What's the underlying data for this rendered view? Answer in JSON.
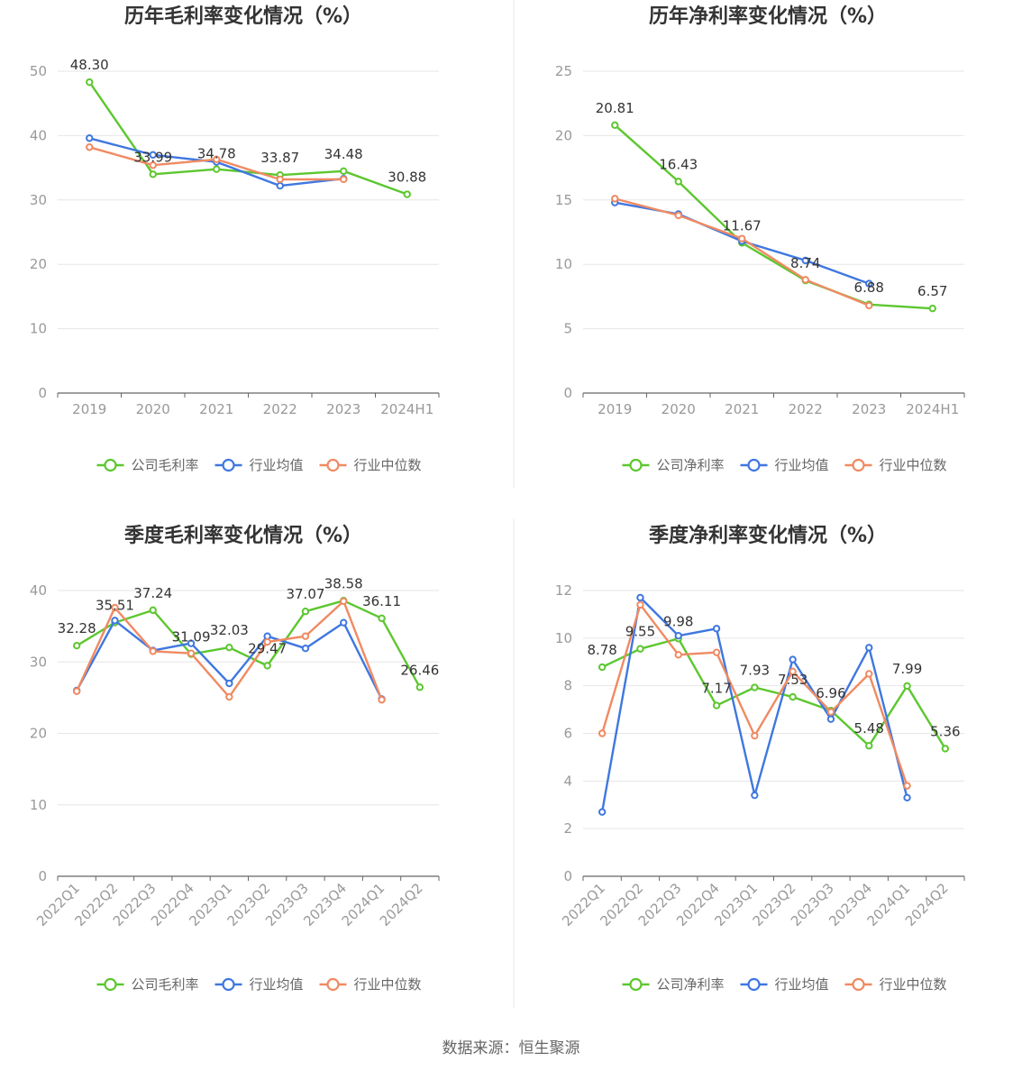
{
  "colors": {
    "company": "#5cc72f",
    "average": "#3f77e0",
    "median": "#f08a62",
    "grid": "#e6e6e6",
    "divider": "#e0e0e0"
  },
  "legend_labels": {
    "gross": [
      "公司毛利率",
      "行业均值",
      "行业中位数"
    ],
    "net": [
      "公司净利率",
      "行业均值",
      "行业中位数"
    ]
  },
  "footer": "数据来源：恒生聚源",
  "chart_data": [
    {
      "type": "line",
      "title": "历年毛利率变化情况（%）",
      "categories": [
        "2019",
        "2020",
        "2021",
        "2022",
        "2023",
        "2024H1"
      ],
      "ylim": [
        0,
        50
      ],
      "yticks": [
        0,
        10,
        20,
        30,
        40,
        50
      ],
      "label_format": "fixed2",
      "grid": true,
      "legend_position": "bottom",
      "series": [
        {
          "name": "公司毛利率",
          "values": [
            48.3,
            33.99,
            34.78,
            33.87,
            34.48,
            30.88
          ],
          "labels": true
        },
        {
          "name": "行业均值",
          "values": [
            39.6,
            37.0,
            35.9,
            32.2,
            33.3,
            null
          ],
          "labels": false
        },
        {
          "name": "行业中位数",
          "values": [
            38.2,
            35.4,
            36.3,
            33.2,
            33.2,
            null
          ],
          "labels": false
        }
      ]
    },
    {
      "type": "line",
      "title": "历年净利率变化情况（%）",
      "categories": [
        "2019",
        "2020",
        "2021",
        "2022",
        "2023",
        "2024H1"
      ],
      "ylim": [
        0,
        25
      ],
      "yticks": [
        0,
        5,
        10,
        15,
        20,
        25
      ],
      "label_format": "fixed2",
      "grid": true,
      "legend_position": "bottom",
      "series": [
        {
          "name": "公司净利率",
          "values": [
            20.81,
            16.43,
            11.67,
            8.74,
            6.88,
            6.57
          ],
          "labels": true
        },
        {
          "name": "行业均值",
          "values": [
            14.8,
            13.9,
            11.8,
            10.3,
            8.5,
            null
          ],
          "labels": false
        },
        {
          "name": "行业中位数",
          "values": [
            15.1,
            13.8,
            12.0,
            8.8,
            6.8,
            null
          ],
          "labels": false
        }
      ]
    },
    {
      "type": "line",
      "title": "季度毛利率变化情况（%）",
      "categories": [
        "2022Q1",
        "2022Q2",
        "2022Q3",
        "2022Q4",
        "2023Q1",
        "2023Q2",
        "2023Q3",
        "2023Q4",
        "2024Q1",
        "2024Q2"
      ],
      "ylim": [
        0,
        40
      ],
      "yticks": [
        0,
        10,
        20,
        30,
        40
      ],
      "label_format": "fixed2",
      "grid": true,
      "legend_position": "bottom",
      "series": [
        {
          "name": "公司毛利率",
          "values": [
            32.28,
            35.51,
            37.24,
            31.09,
            32.03,
            29.47,
            37.07,
            38.58,
            36.11,
            26.46
          ],
          "labels": true
        },
        {
          "name": "行业均值",
          "values": [
            26.0,
            35.8,
            31.6,
            32.6,
            27.0,
            33.6,
            31.9,
            35.5,
            24.8,
            null
          ],
          "labels": false
        },
        {
          "name": "行业中位数",
          "values": [
            25.9,
            37.6,
            31.5,
            31.2,
            25.1,
            32.8,
            33.6,
            38.5,
            24.7,
            null
          ],
          "labels": false
        }
      ]
    },
    {
      "type": "line",
      "title": "季度净利率变化情况（%）",
      "categories": [
        "2022Q1",
        "2022Q2",
        "2022Q3",
        "2022Q4",
        "2023Q1",
        "2023Q2",
        "2023Q3",
        "2023Q4",
        "2024Q1",
        "2024Q2"
      ],
      "ylim": [
        0,
        12
      ],
      "yticks": [
        0,
        2,
        4,
        6,
        8,
        10,
        12
      ],
      "label_format": "fixed2",
      "grid": true,
      "legend_position": "bottom",
      "series": [
        {
          "name": "公司净利率",
          "values": [
            8.78,
            9.55,
            9.98,
            7.17,
            7.93,
            7.53,
            6.96,
            5.48,
            7.99,
            5.36
          ],
          "labels": true
        },
        {
          "name": "行业均值",
          "values": [
            2.7,
            11.7,
            10.1,
            10.4,
            3.4,
            9.1,
            6.6,
            9.6,
            3.3,
            null
          ],
          "labels": false
        },
        {
          "name": "行业中位数",
          "values": [
            6.0,
            11.4,
            9.3,
            9.4,
            5.9,
            8.6,
            6.9,
            8.5,
            3.8,
            null
          ],
          "labels": false
        }
      ]
    }
  ]
}
